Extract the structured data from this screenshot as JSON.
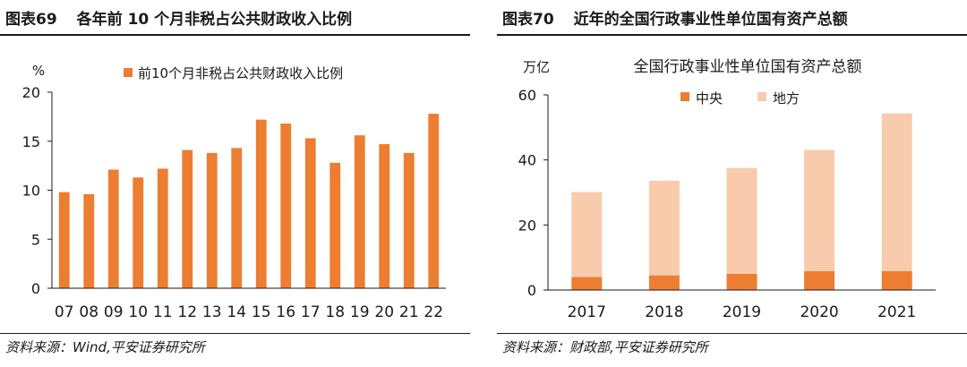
{
  "left": {
    "fig_label": "图表69",
    "fig_title": "各年前 10 个月非税占公共财政收入比例",
    "source": "资料来源：Wind,平安证券研究所"
  },
  "right": {
    "fig_label": "图表70",
    "fig_title": "近年的全国行政事业性单位国有资产总额",
    "source": "资料来源：财政部,平安证券研究所"
  },
  "colors": {
    "orange": "#ED7D31",
    "light_orange": "#F8CBAD",
    "axis": "#1a1a1a"
  },
  "chart_data": [
    {
      "type": "bar",
      "unit_label": "%",
      "categories": [
        "07",
        "08",
        "09",
        "10",
        "11",
        "12",
        "13",
        "14",
        "15",
        "16",
        "17",
        "18",
        "19",
        "20",
        "21",
        "22"
      ],
      "series": [
        {
          "name": "前10个月非税占公共财政收入比例",
          "values": [
            9.8,
            9.6,
            12.1,
            11.3,
            12.2,
            14.1,
            13.8,
            14.3,
            17.2,
            16.8,
            15.3,
            12.8,
            15.6,
            14.7,
            13.8,
            17.8
          ]
        }
      ],
      "title": "",
      "xlabel": "",
      "ylabel": "%",
      "ylim": [
        0,
        20
      ],
      "yticks": [
        0,
        5,
        10,
        15,
        20
      ],
      "legend": "top-center"
    },
    {
      "type": "bar",
      "stacked": true,
      "unit_label": "万亿",
      "title": "全国行政事业性单位国有资产总额",
      "categories": [
        "2017",
        "2018",
        "2019",
        "2020",
        "2021"
      ],
      "series": [
        {
          "name": "中央",
          "values": [
            4.0,
            4.5,
            5.0,
            5.8,
            5.8
          ]
        },
        {
          "name": "地方",
          "values": [
            26.1,
            29.1,
            32.5,
            37.3,
            48.5
          ]
        }
      ],
      "xlabel": "",
      "ylabel": "万亿",
      "ylim": [
        0,
        60
      ],
      "yticks": [
        0,
        20,
        40,
        60
      ],
      "legend": "top-left"
    }
  ]
}
